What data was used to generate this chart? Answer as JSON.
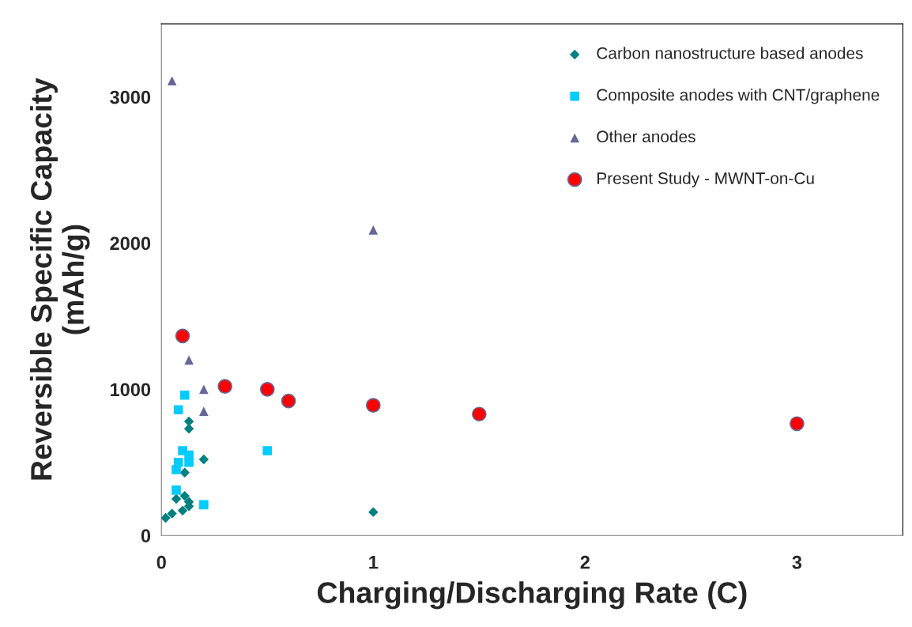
{
  "chart_data": {
    "type": "scatter",
    "xlabel": "Charging/Discharging Rate (C)",
    "ylabel": "Reversible Specific Capacity\n(mAh/g)",
    "xlim": [
      0,
      3.5
    ],
    "ylim": [
      0,
      3500
    ],
    "xticks": [
      0,
      1,
      2,
      3
    ],
    "yticks": [
      0,
      1000,
      2000,
      3000
    ],
    "grid": false,
    "legend": "top right",
    "series": [
      {
        "name": "Carbon nanostructure based anodes",
        "color": "#008080",
        "marker": "diamond",
        "x": [
          0.13,
          0.13,
          0.2,
          0.11,
          0.11,
          0.07,
          0.13,
          0.13,
          0.1,
          0.05,
          0.02,
          1
        ],
        "values": [
          780,
          730,
          520,
          430,
          270,
          250,
          230,
          200,
          170,
          150,
          120,
          160
        ]
      },
      {
        "name": "Composite anodes with CNT/graphene",
        "color": "#00ccff",
        "marker": "square",
        "x": [
          0.11,
          0.08,
          0.1,
          0.13,
          0.08,
          0.13,
          0.07,
          0.07,
          0.2,
          0.5
        ],
        "values": [
          960,
          860,
          580,
          550,
          500,
          500,
          450,
          310,
          210,
          580
        ]
      },
      {
        "name": "Other anodes",
        "color": "#666699",
        "marker": "triangle",
        "x": [
          0.05,
          1,
          0.13,
          0.2,
          0.2
        ],
        "values": [
          3110,
          2090,
          1200,
          1000,
          850
        ]
      },
      {
        "name": "Present Study - MWNT-on-Cu",
        "color": "#ff0000",
        "marker": "circle",
        "x": [
          0.1,
          0.3,
          0.5,
          0.6,
          1,
          1.5,
          3
        ],
        "values": [
          1365,
          1020,
          1000,
          920,
          890,
          830,
          765
        ]
      }
    ]
  }
}
